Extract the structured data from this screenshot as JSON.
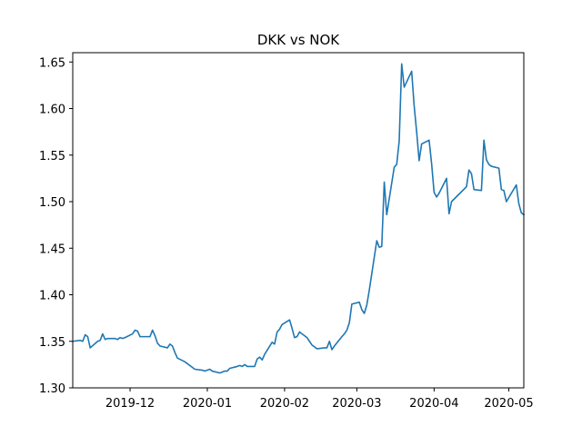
{
  "chart_data": {
    "type": "line",
    "title": "DKK vs NOK",
    "xlabel": "",
    "ylabel": "",
    "grid": false,
    "legend": "none",
    "line_color": "#1f77b4",
    "xlim": [
      "2019-11-08",
      "2020-05-07"
    ],
    "ylim": [
      1.3,
      1.66
    ],
    "x_ticks": [
      {
        "date": "2019-12-01",
        "label": "2019-12"
      },
      {
        "date": "2020-01-01",
        "label": "2020-01"
      },
      {
        "date": "2020-02-01",
        "label": "2020-02"
      },
      {
        "date": "2020-03-01",
        "label": "2020-03"
      },
      {
        "date": "2020-04-01",
        "label": "2020-04"
      },
      {
        "date": "2020-05-01",
        "label": "2020-05"
      }
    ],
    "y_ticks": [
      {
        "value": 1.3,
        "label": "1.30"
      },
      {
        "value": 1.35,
        "label": "1.35"
      },
      {
        "value": 1.4,
        "label": "1.40"
      },
      {
        "value": 1.45,
        "label": "1.45"
      },
      {
        "value": 1.5,
        "label": "1.50"
      },
      {
        "value": 1.55,
        "label": "1.55"
      },
      {
        "value": 1.6,
        "label": "1.60"
      },
      {
        "value": 1.65,
        "label": "1.65"
      }
    ],
    "series": [
      {
        "x": [
          "2019-11-08",
          "2019-11-11",
          "2019-11-12",
          "2019-11-13",
          "2019-11-14",
          "2019-11-15",
          "2019-11-18",
          "2019-11-19",
          "2019-11-20",
          "2019-11-21",
          "2019-11-22",
          "2019-11-25",
          "2019-11-26",
          "2019-11-27",
          "2019-11-28",
          "2019-11-29",
          "2019-12-02",
          "2019-12-03",
          "2019-12-04",
          "2019-12-05",
          "2019-12-06",
          "2019-12-09",
          "2019-12-10",
          "2019-12-11",
          "2019-12-12",
          "2019-12-13",
          "2019-12-16",
          "2019-12-17",
          "2019-12-18",
          "2019-12-19",
          "2019-12-20",
          "2019-12-23",
          "2019-12-27",
          "2019-12-30",
          "2019-12-31",
          "2020-01-02",
          "2020-01-03",
          "2020-01-06",
          "2020-01-07",
          "2020-01-08",
          "2020-01-09",
          "2020-01-10",
          "2020-01-13",
          "2020-01-14",
          "2020-01-15",
          "2020-01-16",
          "2020-01-17",
          "2020-01-20",
          "2020-01-21",
          "2020-01-22",
          "2020-01-23",
          "2020-01-24",
          "2020-01-27",
          "2020-01-28",
          "2020-01-29",
          "2020-01-30",
          "2020-01-31",
          "2020-02-03",
          "2020-02-04",
          "2020-02-05",
          "2020-02-06",
          "2020-02-07",
          "2020-02-10",
          "2020-02-11",
          "2020-02-12",
          "2020-02-13",
          "2020-02-14",
          "2020-02-17",
          "2020-02-18",
          "2020-02-19",
          "2020-02-20",
          "2020-02-21",
          "2020-02-24",
          "2020-02-25",
          "2020-02-26",
          "2020-02-27",
          "2020-02-28",
          "2020-03-02",
          "2020-03-03",
          "2020-03-04",
          "2020-03-05",
          "2020-03-06",
          "2020-03-09",
          "2020-03-10",
          "2020-03-11",
          "2020-03-12",
          "2020-03-13",
          "2020-03-16",
          "2020-03-17",
          "2020-03-18",
          "2020-03-19",
          "2020-03-20",
          "2020-03-23",
          "2020-03-24",
          "2020-03-25",
          "2020-03-26",
          "2020-03-27",
          "2020-03-30",
          "2020-03-31",
          "2020-04-01",
          "2020-04-02",
          "2020-04-03",
          "2020-04-06",
          "2020-04-07",
          "2020-04-08",
          "2020-04-14",
          "2020-04-15",
          "2020-04-16",
          "2020-04-17",
          "2020-04-20",
          "2020-04-21",
          "2020-04-22",
          "2020-04-23",
          "2020-04-24",
          "2020-04-27",
          "2020-04-28",
          "2020-04-29",
          "2020-04-30",
          "2020-05-04",
          "2020-05-05",
          "2020-05-06",
          "2020-05-07"
        ],
        "y": [
          1.35,
          1.351,
          1.35,
          1.357,
          1.355,
          1.343,
          1.35,
          1.351,
          1.358,
          1.352,
          1.353,
          1.353,
          1.352,
          1.354,
          1.353,
          1.354,
          1.358,
          1.362,
          1.361,
          1.355,
          1.355,
          1.355,
          1.362,
          1.356,
          1.348,
          1.345,
          1.343,
          1.347,
          1.345,
          1.338,
          1.332,
          1.328,
          1.32,
          1.319,
          1.318,
          1.32,
          1.318,
          1.316,
          1.317,
          1.318,
          1.318,
          1.321,
          1.323,
          1.324,
          1.323,
          1.325,
          1.323,
          1.323,
          1.331,
          1.333,
          1.33,
          1.336,
          1.349,
          1.347,
          1.36,
          1.363,
          1.368,
          1.373,
          1.364,
          1.354,
          1.355,
          1.36,
          1.354,
          1.35,
          1.346,
          1.344,
          1.342,
          1.343,
          1.343,
          1.35,
          1.341,
          1.345,
          1.355,
          1.358,
          1.362,
          1.37,
          1.39,
          1.392,
          1.384,
          1.38,
          1.389,
          1.405,
          1.458,
          1.451,
          1.452,
          1.521,
          1.486,
          1.537,
          1.54,
          1.565,
          1.648,
          1.623,
          1.64,
          1.603,
          1.575,
          1.544,
          1.562,
          1.566,
          1.541,
          1.51,
          1.505,
          1.509,
          1.525,
          1.487,
          1.5,
          1.516,
          1.534,
          1.53,
          1.513,
          1.512,
          1.566,
          1.545,
          1.54,
          1.538,
          1.536,
          1.513,
          1.512,
          1.5,
          1.518,
          1.498,
          1.488,
          1.486
        ]
      }
    ]
  }
}
